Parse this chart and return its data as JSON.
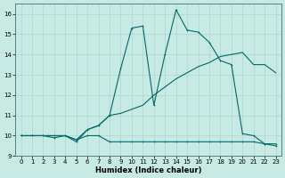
{
  "xlabel": "Humidex (Indice chaleur)",
  "background_color": "#c8eae4",
  "line_color": "#006868",
  "xlim": [
    -0.5,
    23.5
  ],
  "ylim": [
    9.0,
    16.5
  ],
  "yticks": [
    9,
    10,
    11,
    12,
    13,
    14,
    15,
    16
  ],
  "xticks": [
    0,
    1,
    2,
    3,
    4,
    5,
    6,
    7,
    8,
    9,
    10,
    11,
    12,
    13,
    14,
    15,
    16,
    17,
    18,
    19,
    20,
    21,
    22,
    23
  ],
  "series1_x": [
    0,
    1,
    2,
    3,
    4,
    5,
    6,
    7,
    8,
    9,
    10,
    11,
    12,
    13,
    14,
    15,
    16,
    17,
    18,
    19,
    20,
    21,
    22,
    23
  ],
  "series1_y": [
    10.0,
    10.0,
    10.0,
    10.0,
    10.0,
    9.8,
    10.0,
    10.0,
    9.7,
    9.7,
    9.7,
    9.7,
    9.7,
    9.7,
    9.7,
    9.7,
    9.7,
    9.7,
    9.7,
    9.7,
    9.7,
    9.7,
    9.6,
    9.6
  ],
  "series2_x": [
    0,
    1,
    2,
    3,
    4,
    5,
    6,
    7,
    8,
    9,
    10,
    11,
    12,
    13,
    14,
    15,
    16,
    17,
    18,
    19,
    20,
    21,
    22,
    23
  ],
  "series2_y": [
    10.0,
    10.0,
    10.0,
    10.0,
    10.0,
    9.8,
    10.3,
    10.5,
    11.0,
    11.1,
    11.3,
    11.5,
    12.0,
    12.4,
    12.8,
    13.1,
    13.4,
    13.6,
    13.9,
    14.0,
    14.1,
    13.5,
    13.5,
    13.1
  ],
  "series3_x": [
    0,
    1,
    2,
    3,
    4,
    5,
    6,
    7,
    8,
    9,
    10,
    11,
    12,
    13,
    14,
    15,
    16,
    17,
    18,
    19,
    20,
    21,
    22,
    23
  ],
  "series3_y": [
    10.0,
    10.0,
    10.0,
    9.9,
    10.0,
    9.7,
    10.3,
    10.5,
    11.0,
    13.3,
    15.3,
    15.4,
    11.5,
    14.0,
    16.2,
    15.2,
    15.1,
    14.6,
    13.7,
    13.5,
    10.1,
    10.0,
    9.6,
    9.5
  ]
}
